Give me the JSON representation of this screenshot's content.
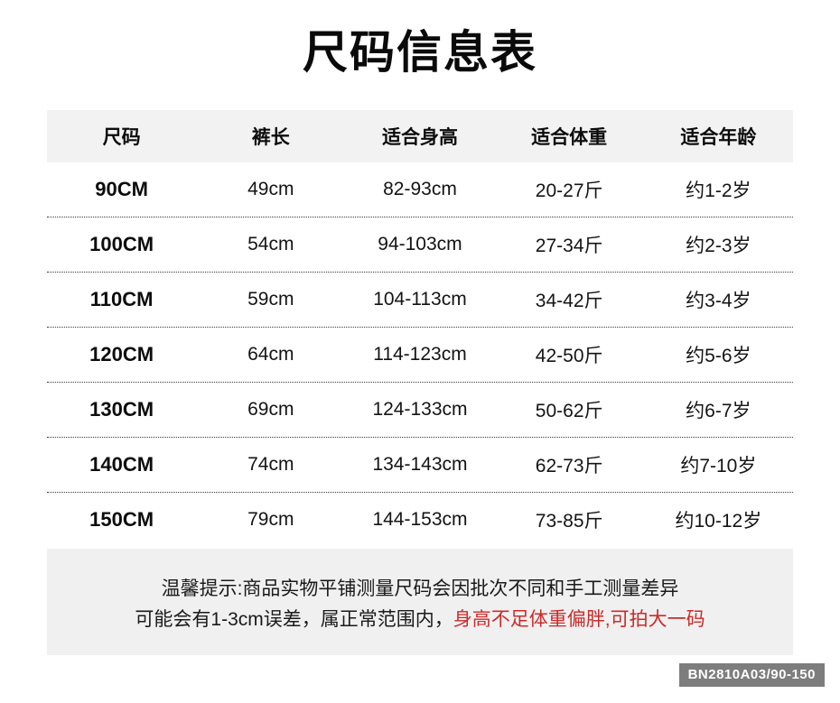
{
  "title": "尺码信息表",
  "chart_data": {
    "type": "table",
    "title": "尺码信息表",
    "columns": [
      "尺码",
      "裤长",
      "适合身高",
      "适合体重",
      "适合年龄"
    ],
    "rows": [
      [
        "90CM",
        "49cm",
        "82-93cm",
        "20-27斤",
        "约1-2岁"
      ],
      [
        "100CM",
        "54cm",
        "94-103cm",
        "27-34斤",
        "约2-3岁"
      ],
      [
        "110CM",
        "59cm",
        "104-113cm",
        "34-42斤",
        "约3-4岁"
      ],
      [
        "120CM",
        "64cm",
        "114-123cm",
        "42-50斤",
        "约5-6岁"
      ],
      [
        "130CM",
        "69cm",
        "124-133cm",
        "50-62斤",
        "约6-7岁"
      ],
      [
        "140CM",
        "74cm",
        "134-143cm",
        "62-73斤",
        "约7-10岁"
      ],
      [
        "150CM",
        "79cm",
        "144-153cm",
        "73-85斤",
        "约10-12岁"
      ]
    ]
  },
  "notice": {
    "line1": "温馨提示:商品实物平铺测量尺码会因批次不同和手工测量差异",
    "line2_black": "可能会有1-3cm误差，属正常范围内，",
    "line2_red": "身高不足体重偏胖,可拍大一码"
  },
  "badge": {
    "label": "BN2810A03/90-150"
  },
  "colors": {
    "red": "#cc2a2a",
    "header_bg": "#f2f2f2",
    "notice_bg": "#f0f0f0",
    "badge_bg": "#7d7d7d"
  }
}
